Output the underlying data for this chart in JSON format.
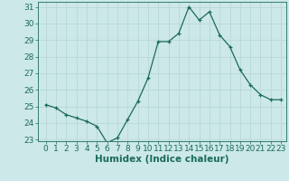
{
  "x": [
    0,
    1,
    2,
    3,
    4,
    5,
    6,
    7,
    8,
    9,
    10,
    11,
    12,
    13,
    14,
    15,
    16,
    17,
    18,
    19,
    20,
    21,
    22,
    23
  ],
  "y": [
    25.1,
    24.9,
    24.5,
    24.3,
    24.1,
    23.8,
    22.8,
    23.1,
    24.2,
    25.3,
    26.7,
    28.9,
    28.9,
    29.4,
    31.0,
    30.2,
    30.7,
    29.3,
    28.6,
    27.2,
    26.3,
    25.7,
    25.4,
    25.4
  ],
  "xlabel": "Humidex (Indice chaleur)",
  "ylim_min": 22.9,
  "ylim_max": 31.3,
  "xlim_min": -0.8,
  "xlim_max": 23.5,
  "yticks": [
    23,
    24,
    25,
    26,
    27,
    28,
    29,
    30,
    31
  ],
  "xticks": [
    0,
    1,
    2,
    3,
    4,
    5,
    6,
    7,
    8,
    9,
    10,
    11,
    12,
    13,
    14,
    15,
    16,
    17,
    18,
    19,
    20,
    21,
    22,
    23
  ],
  "line_color": "#1a6b5a",
  "marker": "+",
  "bg_color": "#cce8e8",
  "grid_color": "#b8d8d8",
  "tick_color": "#1a6b5a",
  "font_size": 6.5,
  "xlabel_fontsize": 7.5
}
